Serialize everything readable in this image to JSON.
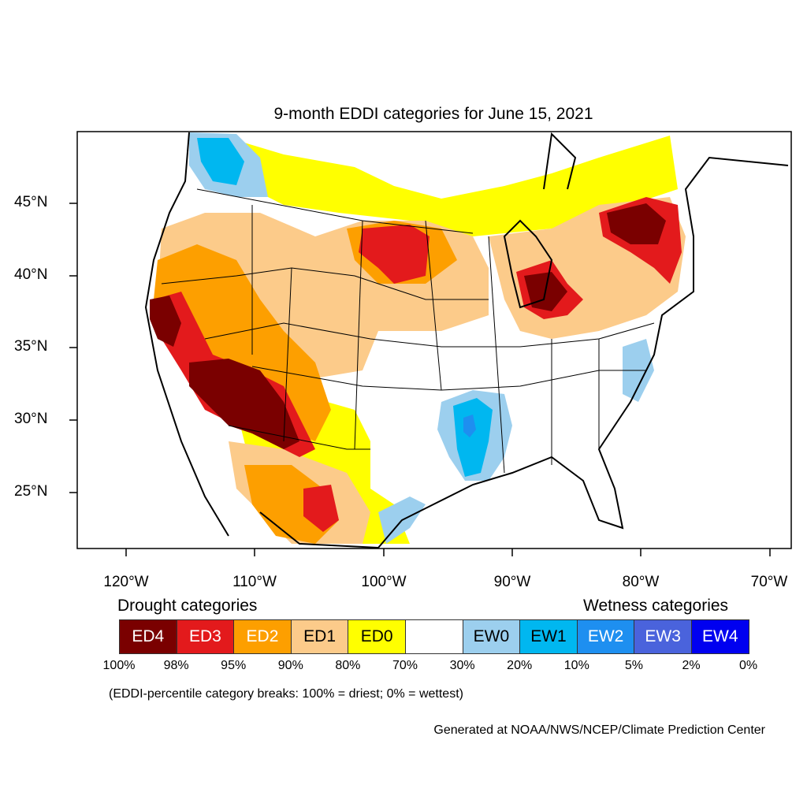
{
  "title": "9-month EDDI categories for June 15, 2021",
  "lat_labels": [
    "45°N",
    "40°N",
    "35°N",
    "30°N",
    "25°N"
  ],
  "lon_labels": [
    "120°W",
    "110°W",
    "100°W",
    "90°W",
    "80°W",
    "70°W"
  ],
  "legend": {
    "drought_heading": "Drought categories",
    "wetness_heading": "Wetness categories",
    "categories": [
      {
        "label": "ED4",
        "color": "#7a0000",
        "text_color": "#ffffff"
      },
      {
        "label": "ED3",
        "color": "#e31a1c",
        "text_color": "#ffffff"
      },
      {
        "label": "ED2",
        "color": "#fd9f00",
        "text_color": "#ffffff"
      },
      {
        "label": "ED1",
        "color": "#fccb8a",
        "text_color": "#000000"
      },
      {
        "label": "ED0",
        "color": "#ffff00",
        "text_color": "#000000"
      },
      {
        "label": "",
        "color": "#ffffff",
        "text_color": "#000000"
      },
      {
        "label": "EW0",
        "color": "#9ccfee",
        "text_color": "#000000"
      },
      {
        "label": "EW1",
        "color": "#00b7f0",
        "text_color": "#000000"
      },
      {
        "label": "EW2",
        "color": "#1e8ff0",
        "text_color": "#ffffff"
      },
      {
        "label": "EW3",
        "color": "#4a63dc",
        "text_color": "#ffffff"
      },
      {
        "label": "EW4",
        "color": "#0000f0",
        "text_color": "#ffffff"
      }
    ],
    "percentiles": [
      "100%",
      "98%",
      "95%",
      "90%",
      "80%",
      "70%",
      "30%",
      "20%",
      "10%",
      "5%",
      "2%",
      "0%"
    ]
  },
  "note": "(EDDI-percentile category breaks: 100% = driest; 0% = wettest)",
  "credit": "Generated at NOAA/NWS/NCEP/Climate Prediction Center"
}
